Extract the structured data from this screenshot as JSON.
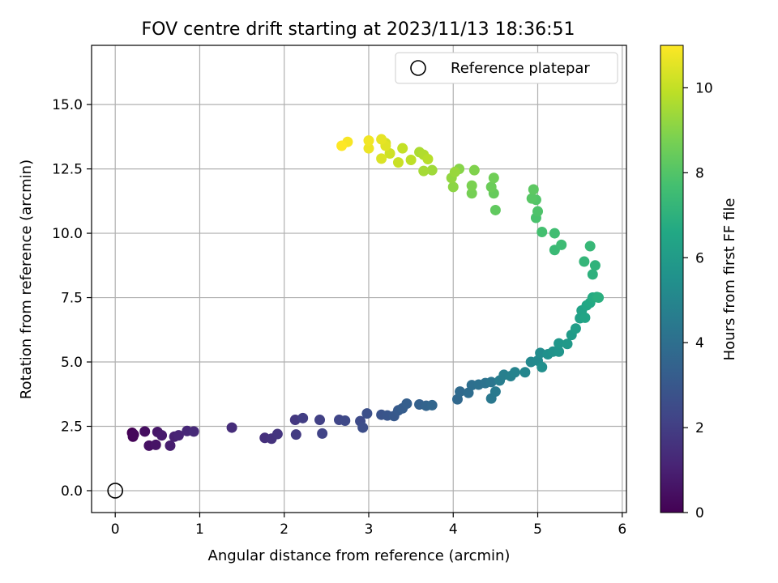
{
  "chart_data": {
    "type": "scatter",
    "title": "FOV centre drift starting at 2023/11/13 18:36:51",
    "xlabel": "Angular distance from reference (arcmin)",
    "ylabel": "Rotation from reference (arcmin)",
    "xlim": [
      -0.28,
      6.05
    ],
    "ylim": [
      -0.85,
      17.3
    ],
    "xticks": [
      "0",
      "1",
      "2",
      "3",
      "4",
      "5",
      "6"
    ],
    "yticks": [
      "0.0",
      "2.5",
      "5.0",
      "7.5",
      "10.0",
      "12.5",
      "15.0"
    ],
    "grid": true,
    "legend": {
      "position": "top-right",
      "label": "Reference platepar"
    },
    "reference_point": {
      "x": 0.0,
      "y": 0.0
    },
    "colorbar": {
      "label": "Hours from first FF file",
      "range": [
        0,
        11
      ],
      "ticks": [
        "0",
        "2",
        "4",
        "6",
        "8",
        "10"
      ],
      "colormap": "viridis"
    },
    "series": [
      {
        "points": [
          [
            0.2,
            2.25,
            0.0
          ],
          [
            0.21,
            2.1,
            0.1
          ],
          [
            0.22,
            2.18,
            0.2
          ],
          [
            0.35,
            2.3,
            0.4
          ],
          [
            0.4,
            1.75,
            0.5
          ],
          [
            0.48,
            1.78,
            0.6
          ],
          [
            0.5,
            2.28,
            0.7
          ],
          [
            0.55,
            2.15,
            0.8
          ],
          [
            0.65,
            1.75,
            0.9
          ],
          [
            0.7,
            2.1,
            1.0
          ],
          [
            0.75,
            2.15,
            1.1
          ],
          [
            0.85,
            2.32,
            1.2
          ],
          [
            0.93,
            2.3,
            1.3
          ],
          [
            1.38,
            2.45,
            1.4
          ],
          [
            1.77,
            2.05,
            1.5
          ],
          [
            1.85,
            2.02,
            1.6
          ],
          [
            1.92,
            2.2,
            1.7
          ],
          [
            2.13,
            2.75,
            1.8
          ],
          [
            2.14,
            2.18,
            1.9
          ],
          [
            2.22,
            2.82,
            2.0
          ],
          [
            2.42,
            2.75,
            2.1
          ],
          [
            2.45,
            2.22,
            2.2
          ],
          [
            2.65,
            2.75,
            2.3
          ],
          [
            2.72,
            2.72,
            2.4
          ],
          [
            2.9,
            2.7,
            2.5
          ],
          [
            2.93,
            2.45,
            2.6
          ],
          [
            2.98,
            3.0,
            2.7
          ],
          [
            3.15,
            2.95,
            2.8
          ],
          [
            3.22,
            2.92,
            2.9
          ],
          [
            3.3,
            2.9,
            3.0
          ],
          [
            3.35,
            3.12,
            3.1
          ],
          [
            3.4,
            3.2,
            3.2
          ],
          [
            3.45,
            3.38,
            3.3
          ],
          [
            3.6,
            3.35,
            3.4
          ],
          [
            3.68,
            3.3,
            3.5
          ],
          [
            3.75,
            3.32,
            3.6
          ],
          [
            4.05,
            3.55,
            3.7
          ],
          [
            4.08,
            3.85,
            3.8
          ],
          [
            4.18,
            3.8,
            3.9
          ],
          [
            4.22,
            4.1,
            4.0
          ],
          [
            4.3,
            4.12,
            4.1
          ],
          [
            4.38,
            4.18,
            4.2
          ],
          [
            4.45,
            4.22,
            4.3
          ],
          [
            4.45,
            3.58,
            4.4
          ],
          [
            4.5,
            3.85,
            4.5
          ],
          [
            4.55,
            4.28,
            4.6
          ],
          [
            4.6,
            4.5,
            4.7
          ],
          [
            4.68,
            4.45,
            4.8
          ],
          [
            4.73,
            4.6,
            4.9
          ],
          [
            4.85,
            4.6,
            5.0
          ],
          [
            4.92,
            5.0,
            5.1
          ],
          [
            5.0,
            5.05,
            5.2
          ],
          [
            5.03,
            5.35,
            5.3
          ],
          [
            5.05,
            4.8,
            5.4
          ],
          [
            5.12,
            5.3,
            5.5
          ],
          [
            5.18,
            5.4,
            5.6
          ],
          [
            5.25,
            5.4,
            5.7
          ],
          [
            5.25,
            5.72,
            5.8
          ],
          [
            5.35,
            5.7,
            5.9
          ],
          [
            5.4,
            6.05,
            6.0
          ],
          [
            5.45,
            6.3,
            6.1
          ],
          [
            5.5,
            6.7,
            6.2
          ],
          [
            5.52,
            7.0,
            6.3
          ],
          [
            5.56,
            6.72,
            6.4
          ],
          [
            5.58,
            7.2,
            6.5
          ],
          [
            5.62,
            7.3,
            6.6
          ],
          [
            5.65,
            7.5,
            6.7
          ],
          [
            5.7,
            7.52,
            6.8
          ],
          [
            5.72,
            7.5,
            6.9
          ],
          [
            5.65,
            8.4,
            7.0
          ],
          [
            5.68,
            8.75,
            7.1
          ],
          [
            5.55,
            8.9,
            7.2
          ],
          [
            5.62,
            9.5,
            7.3
          ],
          [
            5.2,
            9.35,
            7.4
          ],
          [
            5.28,
            9.55,
            7.5
          ],
          [
            5.2,
            10.0,
            7.6
          ],
          [
            5.05,
            10.05,
            7.7
          ],
          [
            4.98,
            10.6,
            7.8
          ],
          [
            5.0,
            10.85,
            7.9
          ],
          [
            4.98,
            11.3,
            8.0
          ],
          [
            4.93,
            11.35,
            8.1
          ],
          [
            4.95,
            11.7,
            8.2
          ],
          [
            4.5,
            10.9,
            8.3
          ],
          [
            4.48,
            11.55,
            8.4
          ],
          [
            4.45,
            11.8,
            8.5
          ],
          [
            4.48,
            12.15,
            8.6
          ],
          [
            4.22,
            11.55,
            8.7
          ],
          [
            4.22,
            11.85,
            8.8
          ],
          [
            4.25,
            12.45,
            8.9
          ],
          [
            4.07,
            12.5,
            9.0
          ],
          [
            4.0,
            11.8,
            9.1
          ],
          [
            3.98,
            12.15,
            9.2
          ],
          [
            4.02,
            12.38,
            9.3
          ],
          [
            3.75,
            12.45,
            9.4
          ],
          [
            3.65,
            12.42,
            9.5
          ],
          [
            3.6,
            13.15,
            9.6
          ],
          [
            3.65,
            13.05,
            9.7
          ],
          [
            3.7,
            12.88,
            9.8
          ],
          [
            3.5,
            12.85,
            9.9
          ],
          [
            3.4,
            13.3,
            10.0
          ],
          [
            3.35,
            12.75,
            10.1
          ],
          [
            3.25,
            13.1,
            10.2
          ],
          [
            3.2,
            13.5,
            10.3
          ],
          [
            3.15,
            12.9,
            10.4
          ],
          [
            3.2,
            13.4,
            10.5
          ],
          [
            3.15,
            13.65,
            10.6
          ],
          [
            3.0,
            13.3,
            10.7
          ],
          [
            3.0,
            13.6,
            10.8
          ],
          [
            2.75,
            13.55,
            10.9
          ],
          [
            2.68,
            13.4,
            11.0
          ]
        ]
      }
    ]
  }
}
